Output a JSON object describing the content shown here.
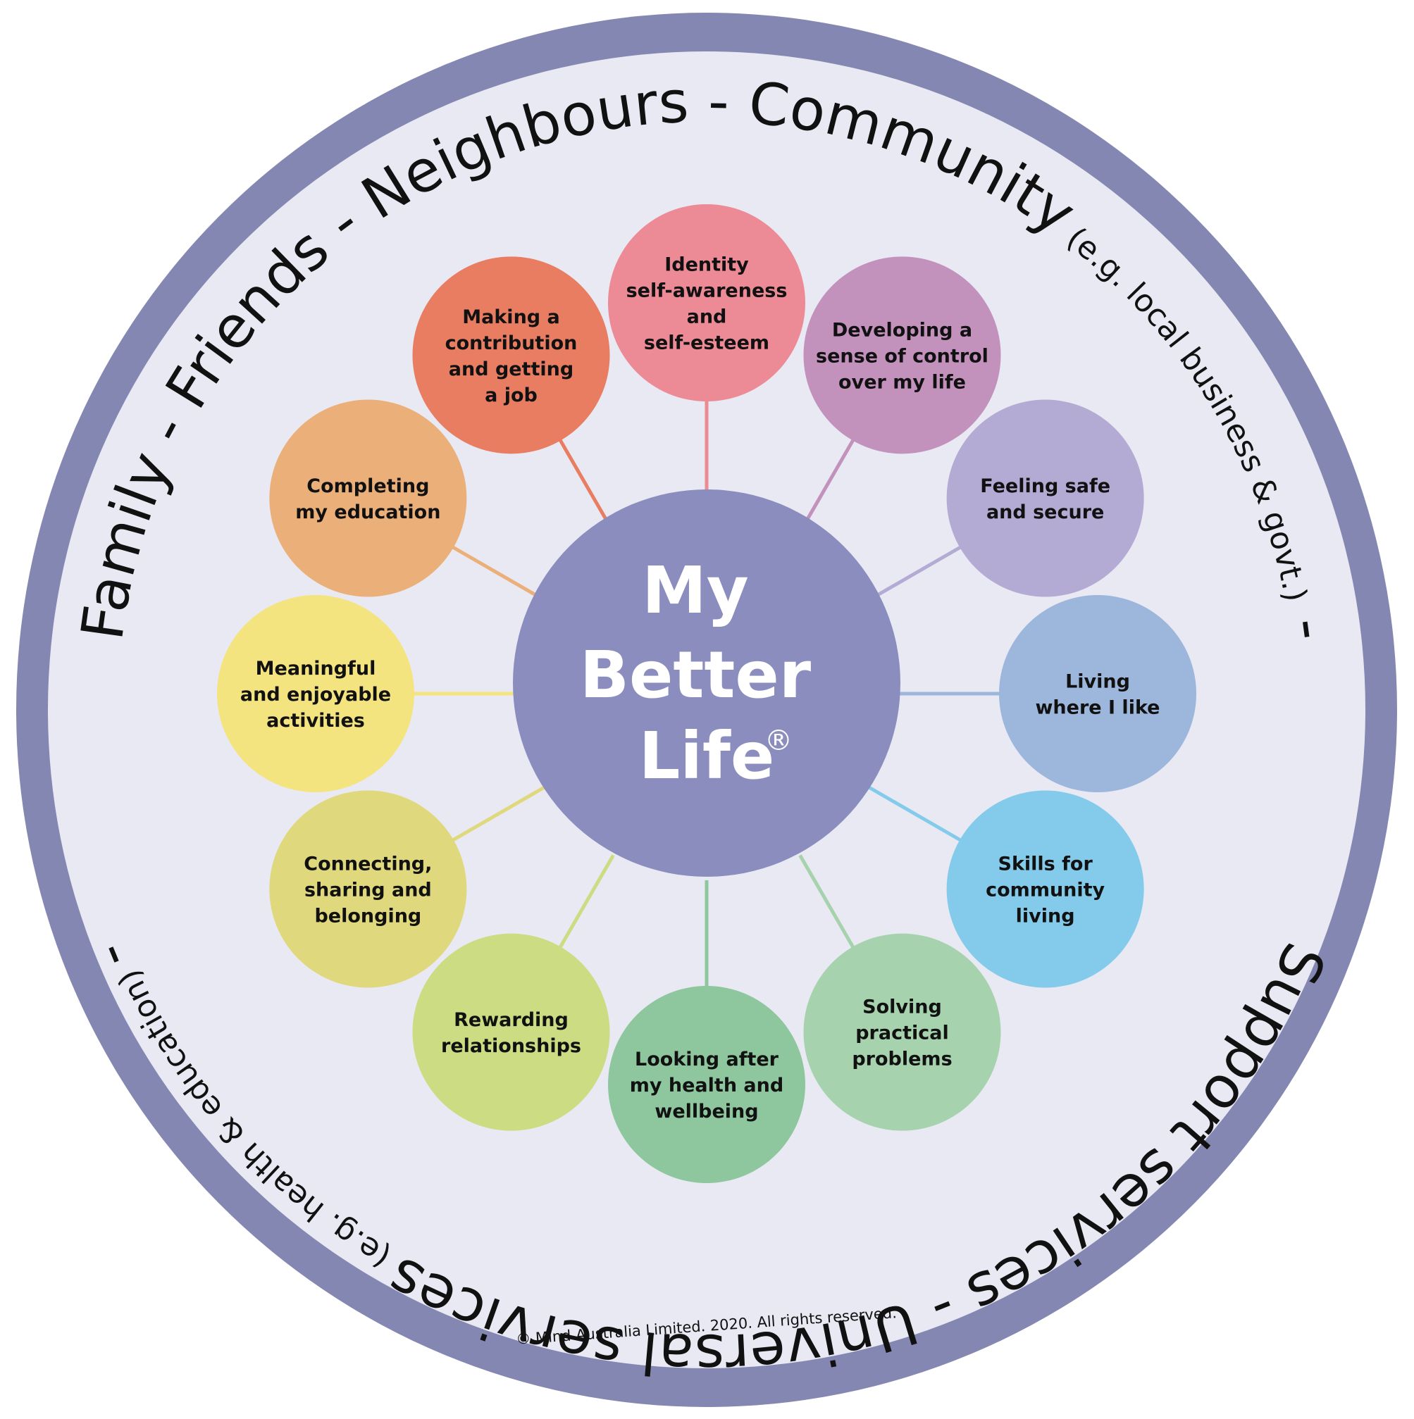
{
  "center": {
    "lines": [
      "My",
      "Better",
      "Life"
    ],
    "mark": "®"
  },
  "outer_ring": {
    "top_big": "Family - Friends - Neighbours - Community",
    "top_small": " (e.g. local business & govt.)",
    "top_tail": " - ",
    "bottom_big": "Support services - Universal services",
    "bottom_small": " (e.g. health & education) ",
    "bottom_tail": "-",
    "colors": {
      "ring": "#8587b3",
      "inner": "#e9e9f3"
    }
  },
  "copyright": "© Mind Australia Limited. 2020. All rights reserved.",
  "petals": [
    {
      "id": "identity",
      "lines": [
        "Identity",
        "self-awareness",
        "and",
        "self-esteem"
      ],
      "color": "#ec8a95"
    },
    {
      "id": "control",
      "lines": [
        "Developing a",
        "sense of control",
        "over my life"
      ],
      "color": "#c292bd"
    },
    {
      "id": "safe",
      "lines": [
        "Feeling safe",
        "and secure"
      ],
      "color": "#b3abd4"
    },
    {
      "id": "living",
      "lines": [
        "Living",
        "where I like"
      ],
      "color": "#9db6dc"
    },
    {
      "id": "skills",
      "lines": [
        "Skills for",
        "community",
        "living"
      ],
      "color": "#84cbeb"
    },
    {
      "id": "solving",
      "lines": [
        "Solving",
        "practical",
        "problems"
      ],
      "color": "#a7d2ae"
    },
    {
      "id": "health",
      "lines": [
        "Looking after",
        "my health and",
        "wellbeing"
      ],
      "color": "#8ec69e"
    },
    {
      "id": "rewarding",
      "lines": [
        "Rewarding",
        "relationships"
      ],
      "color": "#cbdc82"
    },
    {
      "id": "connecting",
      "lines": [
        "Connecting,",
        "sharing and",
        "belonging"
      ],
      "color": "#dfd87c"
    },
    {
      "id": "meaningful",
      "lines": [
        "Meaningful",
        "and enjoyable",
        "activities"
      ],
      "color": "#f4e47f"
    },
    {
      "id": "education",
      "lines": [
        "Completing",
        "my education"
      ],
      "color": "#ebb07a"
    },
    {
      "id": "contribution",
      "lines": [
        "Making a",
        "contribution",
        "and getting",
        "a job"
      ],
      "color": "#e87d62"
    }
  ]
}
